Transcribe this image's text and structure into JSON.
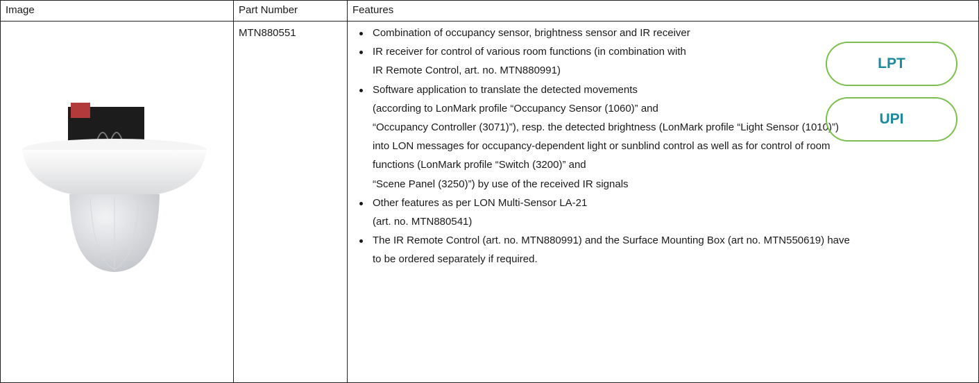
{
  "table": {
    "headers": [
      "Image",
      "Part Number",
      "Features"
    ],
    "rows": [
      {
        "part_number": "MTN880551",
        "features": [
          [
            "Combination of occupancy sensor, brightness sensor and IR receiver"
          ],
          [
            "IR receiver for control of various room functions (in combination with",
            "IR Remote Control, art. no. MTN880991)"
          ],
          [
            "Software application to translate the detected movements",
            "(according to LonMark profile “Occupancy Sensor (1060)” and",
            "“Occupancy Controller (3071)”), resp. the detected brightness (LonMark profile “Light Sensor (1010)”)",
            "into LON messages for occupancy-dependent light or sunblind control as well as for control of room",
            "functions (LonMark profile “Switch (3200)” and",
            "“Scene Panel (3250)”) by use of the received IR signals"
          ],
          [
            "Other features as per LON Multi-Sensor LA-21",
            "(art. no. MTN880541)"
          ],
          [
            "The IR Remote Control (art. no. MTN880991) and the Surface Mounting Box (art no. MTN550619) have",
            "to be ordered separately if required."
          ]
        ],
        "badges": [
          "LPT",
          "UPI"
        ]
      }
    ]
  }
}
